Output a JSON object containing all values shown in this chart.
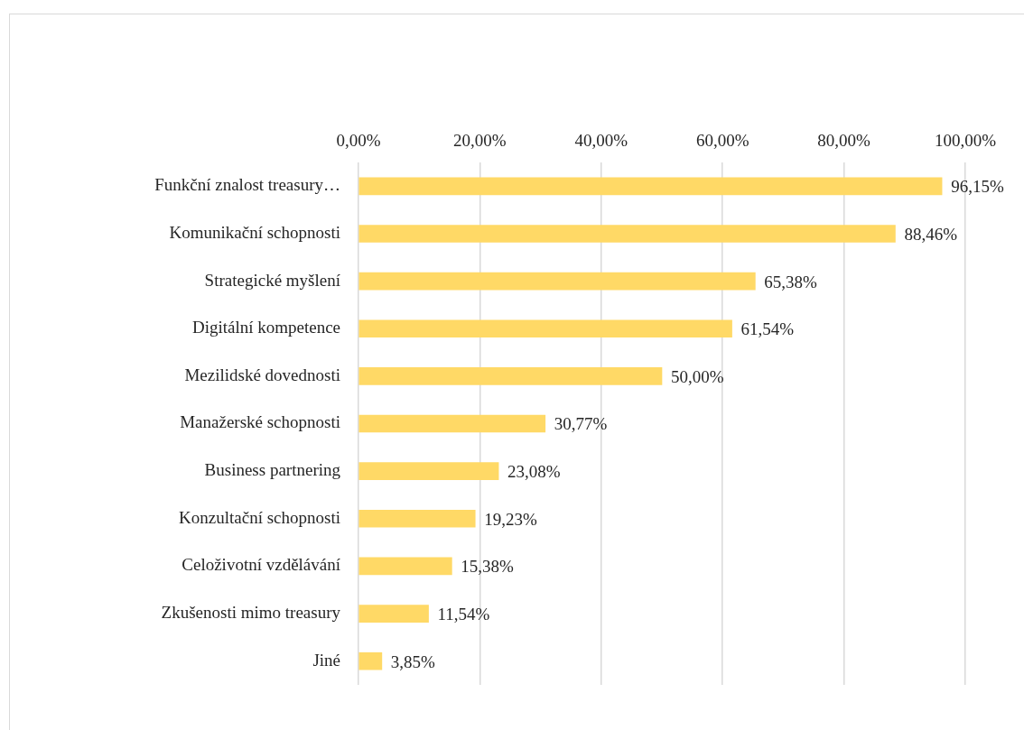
{
  "chart_data": {
    "type": "bar",
    "orientation": "horizontal",
    "categories": [
      "Funkční znalost treasury…",
      "Komunikační schopnosti",
      "Strategické myšlení",
      "Digitální kompetence",
      "Mezilidské dovednosti",
      "Manažerské schopnosti",
      "Business partnering",
      "Konzultační schopnosti",
      "Celoživotní vzdělávání",
      "Zkušenosti mimo treasury",
      "Jiné"
    ],
    "values": [
      96.15,
      88.46,
      65.38,
      61.54,
      50.0,
      30.77,
      23.08,
      19.23,
      15.38,
      11.54,
      3.85
    ],
    "value_labels": [
      "96,15%",
      "88,46%",
      "65,38%",
      "61,54%",
      "50,00%",
      "30,77%",
      "23,08%",
      "19,23%",
      "15,38%",
      "11,54%",
      "3,85%"
    ],
    "color": "#ffd966",
    "xlim": [
      0,
      100
    ],
    "xticks": [
      {
        "value": 0,
        "label": "0,00%"
      },
      {
        "value": 20,
        "label": "20,00%"
      },
      {
        "value": 40,
        "label": "40,00%"
      },
      {
        "value": 60,
        "label": "60,00%"
      },
      {
        "value": 80,
        "label": "80,00%"
      },
      {
        "value": 100,
        "label": "100,00%"
      }
    ],
    "grid": "x",
    "legend": false
  }
}
